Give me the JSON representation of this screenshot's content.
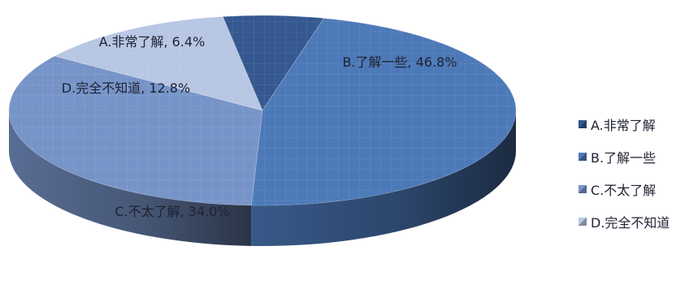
{
  "chart_data": {
    "type": "pie",
    "style": "3d",
    "slices": [
      {
        "label": "A.非常了解",
        "value": 6.4,
        "display": "A.非常了解, 6.4%",
        "color": "#34588f"
      },
      {
        "label": "B.了解一些",
        "value": 46.8,
        "display": "B.了解一些, 46.8%",
        "color": "#4c79b8"
      },
      {
        "label": "C.不太了解",
        "value": 34.0,
        "display": "C.不太了解, 34.0%",
        "color": "#7794c8"
      },
      {
        "label": "D.完全不知道",
        "value": 12.8,
        "display": "D.完全不知道, 12.8%",
        "color": "#b7c6e3"
      }
    ],
    "legend": {
      "position": "right",
      "entries": [
        "A.非常了解",
        "B.了解一些",
        "C.不太了解",
        "D.完全不知道"
      ]
    },
    "data_labels": true
  }
}
